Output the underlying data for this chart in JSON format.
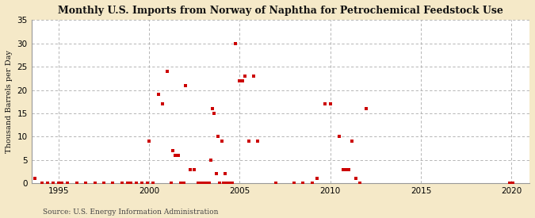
{
  "title": "Monthly U.S. Imports from Norway of Naphtha for Petrochemical Feedstock Use",
  "ylabel": "Thousand Barrels per Day",
  "source": "Source: U.S. Energy Information Administration",
  "fig_background_color": "#f5e9c8",
  "plot_background_color": "#ffffff",
  "marker_color": "#cc0000",
  "xlim": [
    1993.5,
    2021
  ],
  "ylim": [
    0,
    35
  ],
  "yticks": [
    0,
    5,
    10,
    15,
    20,
    25,
    30,
    35
  ],
  "xticks": [
    1995,
    2000,
    2005,
    2010,
    2015,
    2020
  ],
  "grid_color": "#aaaaaa",
  "data_points": [
    [
      1993.7,
      1.0
    ],
    [
      1994.1,
      0.0
    ],
    [
      1994.4,
      0.0
    ],
    [
      1994.7,
      0.0
    ],
    [
      1995.0,
      0.0
    ],
    [
      1995.2,
      0.0
    ],
    [
      1995.5,
      0.0
    ],
    [
      1996.0,
      0.0
    ],
    [
      1996.5,
      0.0
    ],
    [
      1997.0,
      0.0
    ],
    [
      1997.5,
      0.0
    ],
    [
      1998.0,
      0.0
    ],
    [
      1998.5,
      0.0
    ],
    [
      1998.8,
      0.0
    ],
    [
      1999.0,
      0.0
    ],
    [
      1999.3,
      0.0
    ],
    [
      1999.6,
      0.0
    ],
    [
      1999.9,
      0.0
    ],
    [
      2000.0,
      9.0
    ],
    [
      2000.2,
      0.0
    ],
    [
      2000.5,
      19.0
    ],
    [
      2000.75,
      17.0
    ],
    [
      2001.0,
      24.0
    ],
    [
      2001.2,
      0.0
    ],
    [
      2001.3,
      7.0
    ],
    [
      2001.45,
      6.0
    ],
    [
      2001.6,
      6.0
    ],
    [
      2001.75,
      0.0
    ],
    [
      2001.9,
      0.0
    ],
    [
      2002.0,
      21.0
    ],
    [
      2002.25,
      3.0
    ],
    [
      2002.5,
      3.0
    ],
    [
      2002.7,
      0.0
    ],
    [
      2002.9,
      0.0
    ],
    [
      2003.0,
      0.0
    ],
    [
      2003.1,
      0.0
    ],
    [
      2003.2,
      0.0
    ],
    [
      2003.3,
      0.0
    ],
    [
      2003.4,
      5.0
    ],
    [
      2003.5,
      16.0
    ],
    [
      2003.6,
      15.0
    ],
    [
      2003.7,
      2.0
    ],
    [
      2003.8,
      10.0
    ],
    [
      2003.9,
      0.0
    ],
    [
      2004.0,
      9.0
    ],
    [
      2004.1,
      0.0
    ],
    [
      2004.2,
      2.0
    ],
    [
      2004.3,
      0.0
    ],
    [
      2004.35,
      0.0
    ],
    [
      2004.4,
      0.0
    ],
    [
      2004.5,
      0.0
    ],
    [
      2004.6,
      0.0
    ],
    [
      2004.75,
      30.0
    ],
    [
      2005.0,
      22.0
    ],
    [
      2005.15,
      22.0
    ],
    [
      2005.3,
      23.0
    ],
    [
      2005.5,
      9.0
    ],
    [
      2005.75,
      23.0
    ],
    [
      2006.0,
      9.0
    ],
    [
      2007.0,
      0.0
    ],
    [
      2008.0,
      0.0
    ],
    [
      2008.5,
      0.0
    ],
    [
      2009.0,
      0.0
    ],
    [
      2009.25,
      1.0
    ],
    [
      2009.7,
      17.0
    ],
    [
      2010.0,
      17.0
    ],
    [
      2010.5,
      10.0
    ],
    [
      2010.7,
      3.0
    ],
    [
      2010.85,
      3.0
    ],
    [
      2011.0,
      3.0
    ],
    [
      2011.2,
      9.0
    ],
    [
      2011.4,
      1.0
    ],
    [
      2011.65,
      0.0
    ],
    [
      2012.0,
      16.0
    ],
    [
      2019.9,
      0.0
    ],
    [
      2020.1,
      0.0
    ]
  ]
}
